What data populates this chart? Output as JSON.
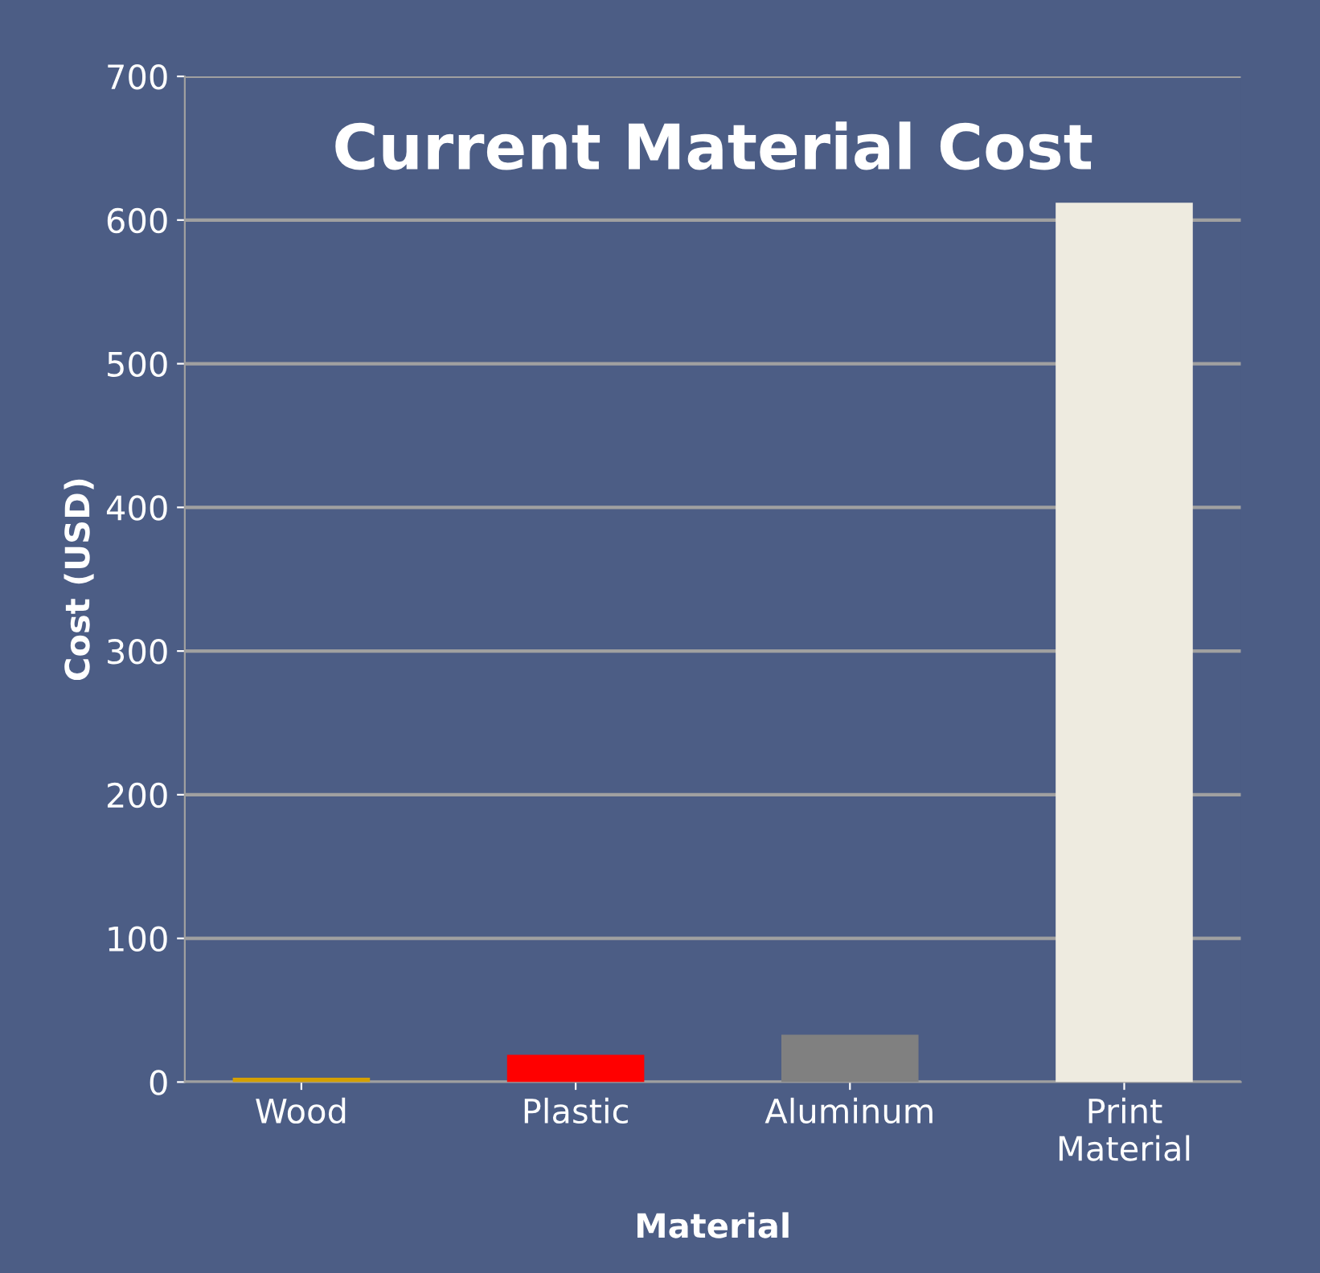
{
  "chart_data": {
    "type": "bar",
    "title": "Current Material Cost",
    "xlabel": "Material",
    "ylabel": "Cost (USD)",
    "categories": [
      "Wood",
      "Plastic",
      "Aluminum",
      "Print\nMaterial"
    ],
    "values": [
      3,
      19,
      33,
      612
    ],
    "colors": [
      "#d4a000",
      "#ff0000",
      "#808080",
      "#eeebe0"
    ],
    "ylim": [
      0,
      700
    ],
    "yticks": [
      0,
      100,
      200,
      300,
      400,
      500,
      600,
      700
    ],
    "grid": "y"
  }
}
